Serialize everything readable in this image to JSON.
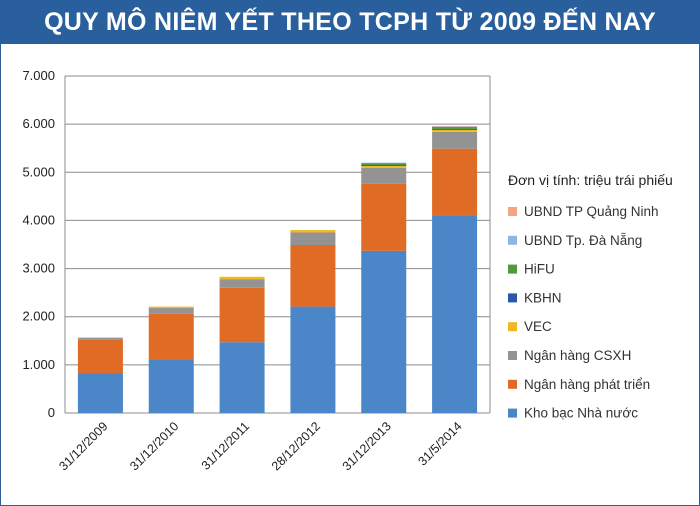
{
  "chart_data": {
    "type": "bar",
    "stacked": true,
    "title": "QUY MÔ NIÊM YẾT THEO TCPH TỪ 2009 ĐẾN NAY",
    "unit_label": "Đơn vị tính: triệu trái phiếu",
    "categories": [
      "31/12/2009",
      "31/12/2010",
      "31/12/2011",
      "28/12/2012",
      "31/12/2013",
      "31/5/2014"
    ],
    "ylim": [
      0,
      7000
    ],
    "yticks": [
      "0",
      "1.000",
      "2.000",
      "3.000",
      "4.000",
      "5.000",
      "6.000",
      "7.000"
    ],
    "ytick_values": [
      0,
      1000,
      2000,
      3000,
      4000,
      5000,
      6000,
      7000
    ],
    "grid": true,
    "legend_position": "right",
    "series": [
      {
        "name": "Kho bạc Nhà nước",
        "color": "#4a86c8",
        "values": [
          820,
          1110,
          1470,
          2210,
          3370,
          4110
        ]
      },
      {
        "name": "Ngân hàng phát triển",
        "color": "#e06b25",
        "values": [
          700,
          950,
          1130,
          1280,
          1390,
          1380
        ]
      },
      {
        "name": "Ngân hàng CSXH",
        "color": "#939393",
        "values": [
          40,
          120,
          180,
          260,
          330,
          350
        ]
      },
      {
        "name": "VEC",
        "color": "#f2b722",
        "values": [
          10,
          30,
          50,
          50,
          40,
          40
        ]
      },
      {
        "name": "KBHN",
        "color": "#2a58a8",
        "values": [
          0,
          0,
          0,
          0,
          20,
          20
        ]
      },
      {
        "name": "HiFU",
        "color": "#4f9a3c",
        "values": [
          0,
          0,
          0,
          0,
          40,
          40
        ]
      },
      {
        "name": "UBND Tp. Đà Nẵng",
        "color": "#8fb6e0",
        "values": [
          0,
          0,
          0,
          0,
          10,
          10
        ]
      },
      {
        "name": "UBND TP Quảng Ninh",
        "color": "#f4a582",
        "values": [
          0,
          0,
          0,
          0,
          0,
          10
        ]
      }
    ],
    "legend_order": [
      "UBND TP Quảng Ninh",
      "UBND Tp. Đà Nẵng",
      "HiFU",
      "KBHN",
      "VEC",
      "Ngân hàng CSXH",
      "Ngân hàng phát triển",
      "Kho bạc Nhà nước"
    ]
  }
}
